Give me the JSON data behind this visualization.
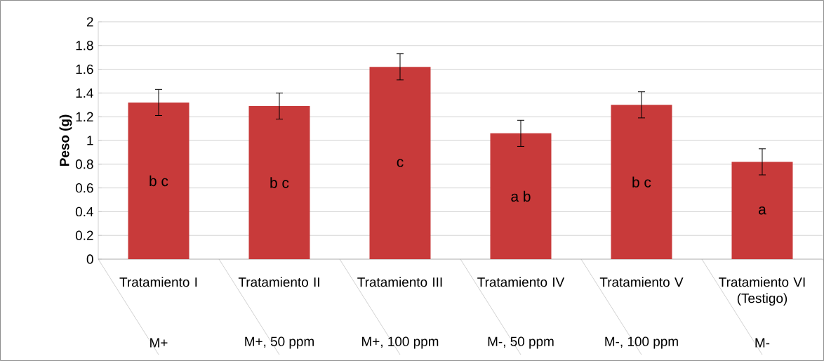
{
  "chart_data": {
    "type": "bar",
    "ylabel": "Peso (g)",
    "categories": [
      "Tratamiento I",
      "Tratamiento II",
      "Tratamiento III",
      "Tratamiento IV",
      "Tratamiento V",
      "Tratamiento VI (Testigo)"
    ],
    "values": [
      1.32,
      1.29,
      1.62,
      1.06,
      1.3,
      0.82
    ],
    "errors": [
      0.11,
      0.11,
      0.11,
      0.11,
      0.11,
      0.11
    ],
    "color": "#c83a3a",
    "ylim": [
      0,
      2
    ],
    "yticks": [
      0,
      0.2,
      0.4,
      0.6,
      0.8,
      1,
      1.2,
      1.4,
      1.6,
      1.8,
      2
    ],
    "grid": "y",
    "annotations": [
      "b  c",
      "b  c",
      "c",
      "a  b",
      "b  c",
      "a",
      "M+",
      "M+, 50 ppm",
      "M+, 100 ppm",
      "M-, 50 ppm",
      "M-, 100 ppm",
      "M-"
    ]
  }
}
